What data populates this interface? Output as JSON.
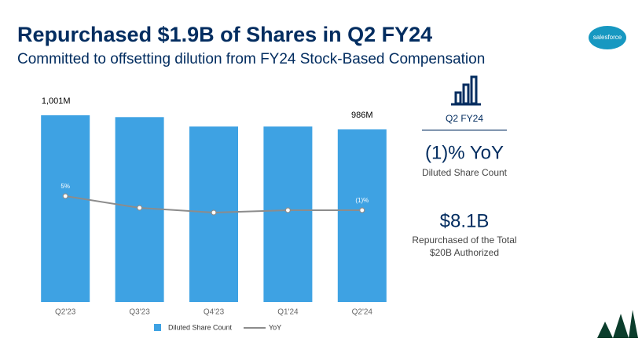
{
  "chart_data": {
    "type": "bar-line",
    "title": "Repurchased $1.9B of Shares in Q2 FY24",
    "subtitle": "Committed to offsetting dilution from FY24 Stock-Based Compensation",
    "categories": [
      "Q2'23",
      "Q3'23",
      "Q4'23",
      "Q1'24",
      "Q2'24"
    ],
    "series": [
      {
        "name": "Diluted Share Count",
        "type": "bar",
        "color": "#3ea2e3",
        "values": [
          1001,
          999,
          989,
          989,
          986
        ],
        "value_labels": [
          "1,001M",
          null,
          null,
          null,
          "986M"
        ]
      },
      {
        "name": "YoY",
        "type": "line",
        "axis": "y2",
        "color": "#8c8c8c",
        "values": [
          5,
          0,
          -2,
          -1,
          -1
        ],
        "value_labels": [
          "5%",
          null,
          null,
          null,
          "(1)%"
        ]
      }
    ],
    "ylim": [
      803,
      1040
    ],
    "y2lim": [
      -40,
      55
    ],
    "legend": "bottom"
  },
  "logo": "salesforce",
  "kpi_panel": {
    "period": "Q2 FY24",
    "metric_1": "(1)% YoY",
    "metric_1_caption": "Diluted Share Count",
    "metric_2": "$8.1B",
    "metric_2_caption_line_1": "Repurchased of the Total",
    "metric_2_caption_line_2": "$20B Authorized"
  }
}
